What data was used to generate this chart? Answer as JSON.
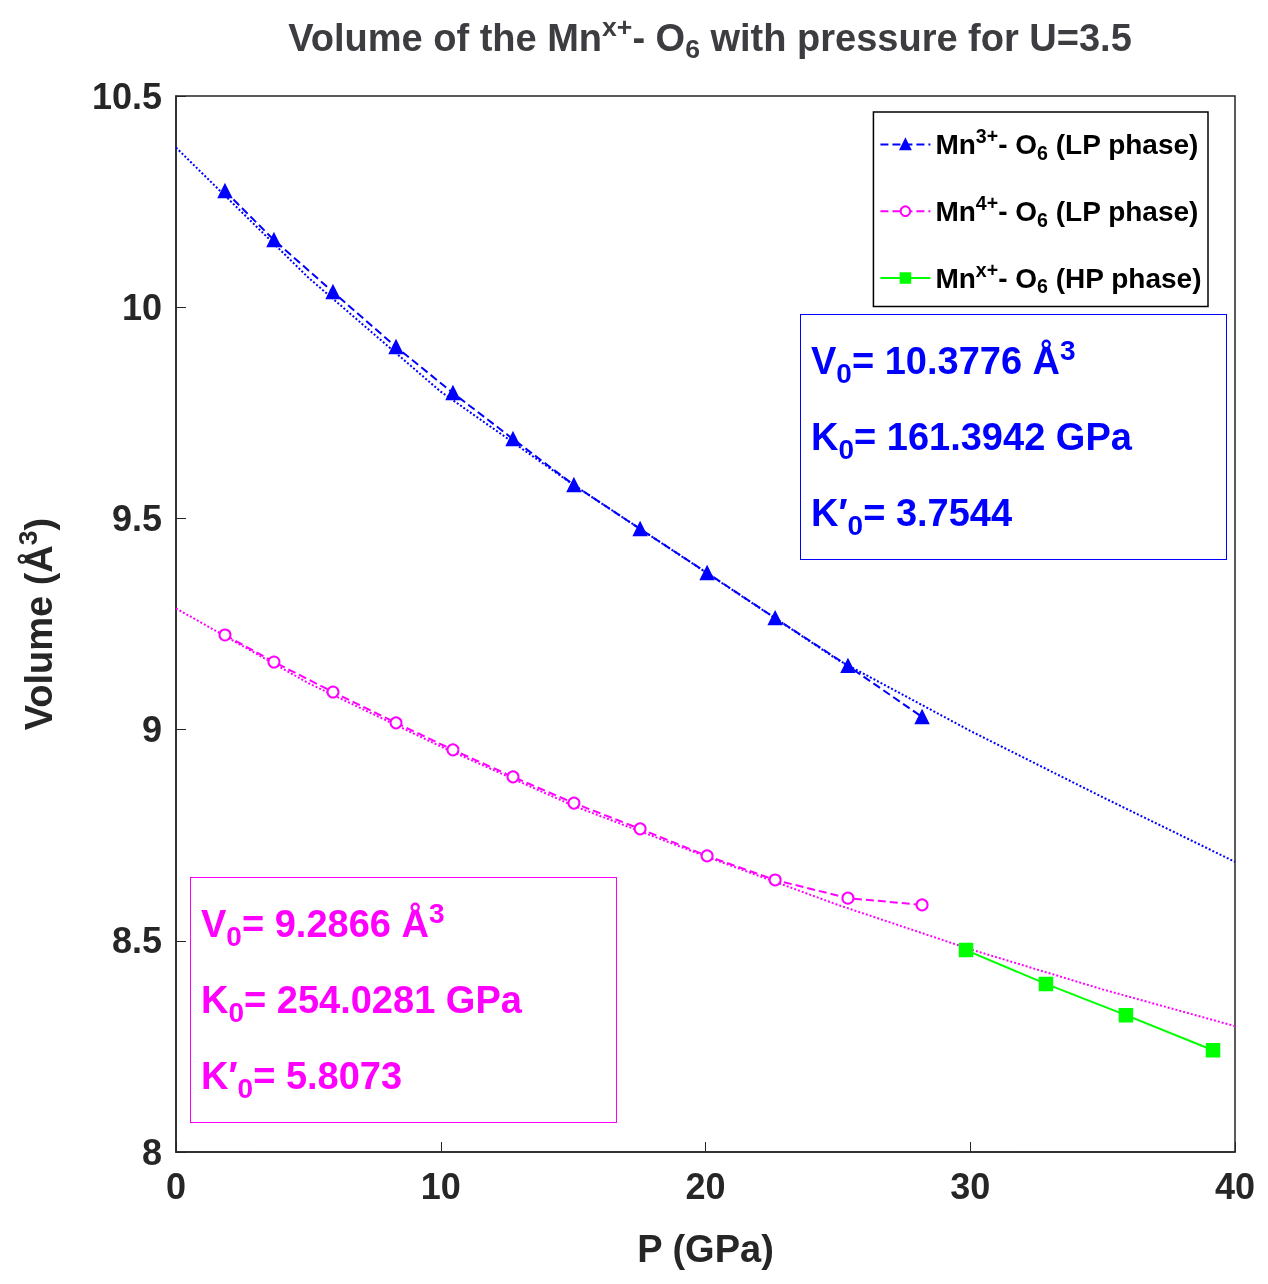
{
  "chart_data": {
    "type": "line",
    "title": "Volume of the Mn$^{x+}$- O$_{6}$ with pressure for U=3.5",
    "xlabel": "P (GPa)",
    "ylabel": "Volume (Å$^{3}$)",
    "xlim": [
      0,
      40
    ],
    "xticks": [
      0,
      10,
      20,
      30,
      40
    ],
    "ylim": [
      8,
      10.5
    ],
    "yticks": [
      8,
      8.5,
      9,
      9.5,
      10,
      10.5
    ],
    "grid": false,
    "legend": "top right",
    "series": [
      {
        "name": "Mn$^{3+}$- O$_{6}$ (LP phase)",
        "color": "#0000ff",
        "marker": "triangle",
        "line_style": "dashed",
        "x": [
          1.85,
          3.7,
          5.93,
          8.31,
          10.46,
          12.73,
          15.03,
          17.53,
          20.06,
          22.63,
          25.38,
          28.18
        ],
        "values": [
          10.275,
          10.159,
          10.036,
          9.906,
          9.797,
          9.688,
          9.579,
          9.475,
          9.371,
          9.264,
          9.151,
          9.03
        ]
      },
      {
        "name": "Mn$^{4+}$- O$_{6}$ (LP phase)",
        "color": "#ff00ff",
        "marker": "circle",
        "line_style": "dashed",
        "x": [
          1.85,
          3.7,
          5.93,
          8.31,
          10.46,
          12.73,
          15.03,
          17.53,
          20.06,
          22.63,
          25.38,
          28.18
        ],
        "values": [
          9.224,
          9.16,
          9.089,
          9.016,
          8.952,
          8.888,
          8.826,
          8.765,
          8.701,
          8.644,
          8.601,
          8.585
        ]
      },
      {
        "name": "Mn$^{x+}$- O$_{6}$ (HP phase)",
        "color": "#00ff00",
        "marker": "square",
        "line_style": "solid",
        "x": [
          29.84,
          32.86,
          35.88,
          39.17
        ],
        "values": [
          8.478,
          8.398,
          8.324,
          8.241
        ]
      },
      {
        "color": "#0000ff",
        "marker": "none",
        "line_style": "dotted",
        "x": [
          0,
          5,
          10,
          15,
          20,
          25,
          30,
          35,
          40
        ],
        "values": [
          10.378,
          10.07,
          9.8,
          9.58,
          9.373,
          9.165,
          8.997,
          8.84,
          8.687
        ]
      },
      {
        "color": "#ff00ff",
        "marker": "none",
        "line_style": "dotted",
        "x": [
          0,
          5,
          10,
          15,
          20,
          25,
          30,
          35,
          40
        ],
        "values": [
          9.287,
          9.11,
          8.96,
          8.82,
          8.7,
          8.585,
          8.48,
          8.385,
          8.298
        ]
      }
    ],
    "annotations": [
      "V$_{0}$= 10.3776 Å$^{3}$",
      "K$_{0}$= 161.3942 GPa",
      "K′$_{0}$= 3.7544",
      "V$_{0}$= 9.2866 Å$^{3}$",
      "K$_{0}$= 254.0281 GPa",
      "K′$_{0}$= 5.8073"
    ]
  }
}
